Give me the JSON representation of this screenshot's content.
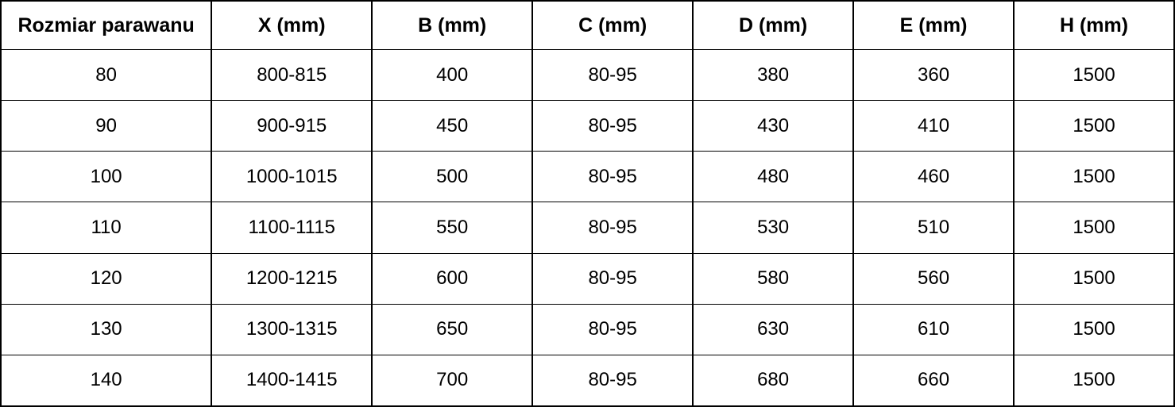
{
  "table": {
    "columns": [
      "Rozmiar parawanu",
      "X (mm)",
      "B (mm)",
      "C (mm)",
      "D (mm)",
      "E (mm)",
      "H (mm)"
    ],
    "rows": [
      [
        "80",
        "800-815",
        "400",
        "80-95",
        "380",
        "360",
        "1500"
      ],
      [
        "90",
        "900-915",
        "450",
        "80-95",
        "430",
        "410",
        "1500"
      ],
      [
        "100",
        "1000-1015",
        "500",
        "80-95",
        "480",
        "460",
        "1500"
      ],
      [
        "110",
        "1100-1115",
        "550",
        "80-95",
        "530",
        "510",
        "1500"
      ],
      [
        "120",
        "1200-1215",
        "600",
        "80-95",
        "580",
        "560",
        "1500"
      ],
      [
        "130",
        "1300-1315",
        "650",
        "80-95",
        "630",
        "610",
        "1500"
      ],
      [
        "140",
        "1400-1415",
        "700",
        "80-95",
        "680",
        "660",
        "1500"
      ]
    ]
  },
  "chart_data": {
    "type": "table",
    "title": "",
    "columns": [
      "Rozmiar parawanu",
      "X (mm)",
      "B (mm)",
      "C (mm)",
      "D (mm)",
      "E (mm)",
      "H (mm)"
    ],
    "rows": [
      [
        "80",
        "800-815",
        "400",
        "80-95",
        "380",
        "360",
        "1500"
      ],
      [
        "90",
        "900-915",
        "450",
        "80-95",
        "430",
        "410",
        "1500"
      ],
      [
        "100",
        "1000-1015",
        "500",
        "80-95",
        "480",
        "460",
        "1500"
      ],
      [
        "110",
        "1100-1115",
        "550",
        "80-95",
        "530",
        "510",
        "1500"
      ],
      [
        "120",
        "1200-1215",
        "600",
        "80-95",
        "580",
        "560",
        "1500"
      ],
      [
        "130",
        "1300-1315",
        "650",
        "80-95",
        "630",
        "610",
        "1500"
      ],
      [
        "140",
        "1400-1415",
        "700",
        "80-95",
        "680",
        "660",
        "1500"
      ]
    ],
    "colors": {
      "border": "#000000",
      "background": "#ffffff",
      "text": "#000000"
    }
  }
}
